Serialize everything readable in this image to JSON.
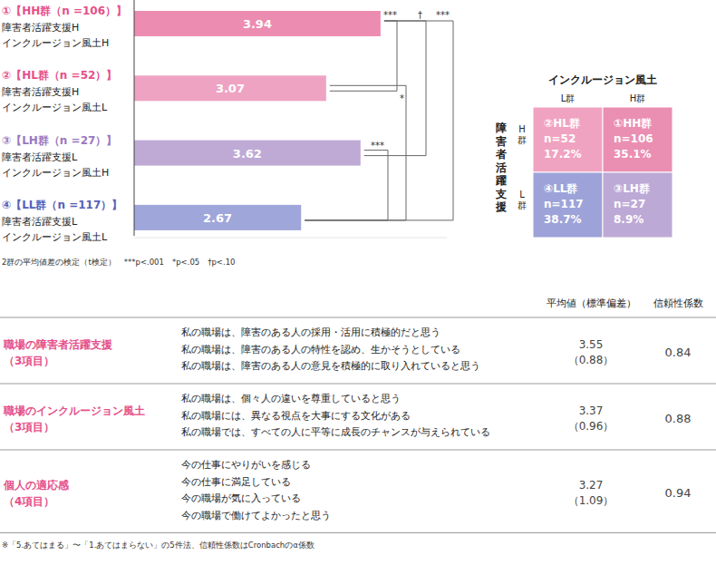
{
  "chart_data": {
    "type": "bar",
    "orientation": "horizontal",
    "categories": [
      "①【HH群（n =106）】",
      "②【HL群（n =52）】",
      "③【LH群（n =27）】",
      "④【LL群（n =117）】"
    ],
    "category_details": [
      [
        "障害者活躍支援H",
        "インクルージョン風土H"
      ],
      [
        "障害者活躍支援H",
        "インクルージョン風土L"
      ],
      [
        "障害者活躍支援L",
        "インクルージョン風土H"
      ],
      [
        "障害者活躍支援L",
        "インクルージョン風土L"
      ]
    ],
    "values": [
      3.94,
      3.07,
      3.62,
      2.67
    ],
    "colors": [
      "#ec8cb0",
      "#efa3c2",
      "#bfaad6",
      "#9fa6da"
    ],
    "xlim": [
      0,
      5
    ],
    "tick_labels": false,
    "data_labels": true,
    "comparisons": [
      {
        "pair": [
          0,
          1
        ],
        "label": "***"
      },
      {
        "pair": [
          1,
          3
        ],
        "label": "*"
      },
      {
        "pair": [
          2,
          3
        ],
        "label": "***"
      },
      {
        "pair": [
          0,
          2
        ],
        "label": "†"
      },
      {
        "pair": [
          0,
          3
        ],
        "label": "***"
      }
    ],
    "footnote": "2群の平均値差の検定（t検定）　***p<.001　*p<.05　†p<.10"
  },
  "matrix": {
    "title": "インクルージョン風土",
    "col_labels": [
      "L群",
      "H群"
    ],
    "row_title": "障害者活躍支援",
    "row_labels": [
      "H群",
      "L群"
    ],
    "cells": [
      [
        [
          "②HL群",
          "n=52",
          "17.2%"
        ],
        [
          "①HH群",
          "n=106",
          "35.1%"
        ]
      ],
      [
        [
          "④LL群",
          "n=117",
          "38.7%"
        ],
        [
          "③LH群",
          "n=27",
          "8.9%"
        ]
      ]
    ]
  },
  "table": {
    "header": [
      "平均値（標準偏差）",
      "信頼性係数"
    ],
    "rows": [
      {
        "title": [
          "職場の障害者活躍支援",
          "（3項目）"
        ],
        "items": [
          "私の職場は、障害のある人の採用・活用に積極的だと思う",
          "私の職場は、障害のある人の特性を認め、生かそうとしている",
          "私の職場は、障害のある人の意見を積極的に取り入れていると思う"
        ],
        "mean": "3.55",
        "sd": "（0.88）",
        "reliability": "0.84"
      },
      {
        "title": [
          "職場のインクルージョン風土",
          "（3項目）"
        ],
        "items": [
          "私の職場は、個々人の違いを尊重していると思う",
          "私の職場には、異なる視点を大事にする文化がある",
          "私の職場では、すべての人に平等に成長のチャンスが与えられている"
        ],
        "mean": "3.37",
        "sd": "（0.96）",
        "reliability": "0.88"
      },
      {
        "title": [
          "個人の適応感",
          "（4項目）"
        ],
        "items": [
          "今の仕事にやりがいを感じる",
          "今の仕事に満足している",
          "今の職場が気に入っている",
          "今の職場で働けてよかったと思う"
        ],
        "mean": "3.27",
        "sd": "（1.09）",
        "reliability": "0.94"
      }
    ],
    "footnote": "※「5.あてはまる」〜「1.あてはまらない」の5件法、信頼性係数はCronbachのα係数"
  }
}
